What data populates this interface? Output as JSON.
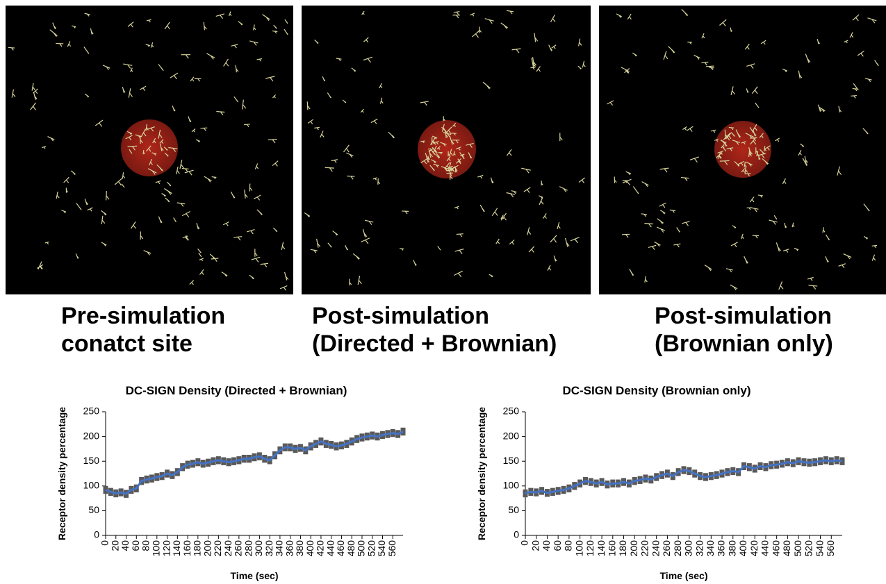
{
  "captions": [
    [
      "Pre-simulation",
      "conatct site"
    ],
    [
      "Post-simulation",
      "(Directed + Brownian)"
    ],
    [
      "Post-simulation",
      "(Brownian only)"
    ]
  ],
  "chart_data": [
    {
      "type": "line",
      "title": "DC-SIGN Density (Directed + Brownian)",
      "xlabel": "Time (sec)",
      "ylabel": "Receptor density percentage",
      "x": [
        0,
        10,
        20,
        30,
        40,
        50,
        60,
        70,
        80,
        90,
        100,
        110,
        120,
        130,
        140,
        150,
        160,
        170,
        180,
        190,
        200,
        210,
        220,
        230,
        240,
        250,
        260,
        270,
        280,
        290,
        300,
        310,
        320,
        330,
        340,
        350,
        360,
        370,
        380,
        390,
        400,
        410,
        420,
        430,
        440,
        450,
        460,
        470,
        480,
        490,
        500,
        510,
        520,
        530,
        540,
        550,
        560,
        570,
        580
      ],
      "series": [
        {
          "color": "#4472c4",
          "values": [
            92,
            88,
            85,
            87,
            84,
            92,
            95,
            110,
            113,
            115,
            118,
            120,
            125,
            122,
            128,
            138,
            143,
            145,
            148,
            145,
            147,
            150,
            152,
            150,
            148,
            150,
            152,
            155,
            155,
            158,
            160,
            155,
            152,
            162,
            172,
            178,
            178,
            175,
            177,
            172,
            180,
            185,
            190,
            185,
            183,
            180,
            182,
            185,
            190,
            195,
            198,
            200,
            202,
            200,
            203,
            205,
            207,
            205,
            210
          ]
        }
      ],
      "error": 8,
      "error_color": "#595959",
      "xlim": [
        0,
        580
      ],
      "ylim": [
        0,
        250
      ],
      "xticks": [
        0,
        20,
        40,
        60,
        80,
        100,
        120,
        140,
        160,
        180,
        200,
        220,
        240,
        260,
        280,
        300,
        320,
        340,
        360,
        380,
        400,
        420,
        440,
        460,
        480,
        500,
        520,
        540,
        560
      ],
      "yticks": [
        0,
        50,
        100,
        150,
        200,
        250
      ]
    },
    {
      "type": "line",
      "title": "DC-SIGN Density (Brownian only)",
      "xlabel": "Time (sec)",
      "ylabel": "Receptor density percentage",
      "x": [
        0,
        10,
        20,
        30,
        40,
        50,
        60,
        70,
        80,
        90,
        100,
        110,
        120,
        130,
        140,
        150,
        160,
        170,
        180,
        190,
        200,
        210,
        220,
        230,
        240,
        250,
        260,
        270,
        280,
        290,
        300,
        310,
        320,
        330,
        340,
        350,
        360,
        370,
        380,
        390,
        400,
        410,
        420,
        430,
        440,
        450,
        460,
        470,
        480,
        490,
        500,
        510,
        520,
        530,
        540,
        550,
        560,
        570,
        580
      ],
      "series": [
        {
          "color": "#4472c4",
          "values": [
            85,
            88,
            87,
            90,
            86,
            88,
            90,
            92,
            95,
            100,
            105,
            110,
            108,
            105,
            108,
            103,
            105,
            105,
            108,
            105,
            110,
            112,
            115,
            113,
            118,
            122,
            125,
            120,
            128,
            132,
            130,
            125,
            120,
            118,
            120,
            122,
            125,
            128,
            130,
            128,
            140,
            138,
            135,
            140,
            138,
            142,
            143,
            145,
            148,
            146,
            150,
            148,
            147,
            148,
            150,
            152,
            150,
            152,
            150
          ]
        }
      ],
      "error": 8,
      "error_color": "#595959",
      "xlim": [
        0,
        580
      ],
      "ylim": [
        0,
        250
      ],
      "xticks": [
        0,
        20,
        40,
        60,
        80,
        100,
        120,
        140,
        160,
        180,
        200,
        220,
        240,
        260,
        280,
        300,
        320,
        340,
        360,
        380,
        400,
        420,
        440,
        460,
        480,
        500,
        520,
        540,
        560
      ],
      "yticks": [
        0,
        50,
        100,
        150,
        200,
        250
      ]
    }
  ]
}
